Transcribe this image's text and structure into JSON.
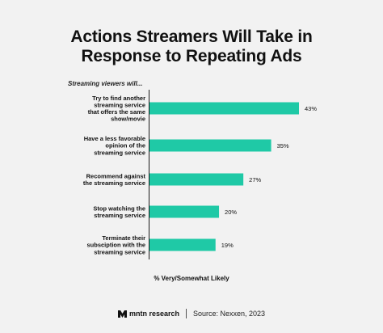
{
  "title_lines": [
    "Actions Streamers Will Take in",
    "Response to Repeating Ads"
  ],
  "subtitle": "Streaming viewers will...",
  "xlabel": "% Very/Somewhat Likely",
  "footer": {
    "brand": "mntn research",
    "brand_icon": "mntn-logo-icon",
    "source": "Source: Nexxen, 2023"
  },
  "colors": {
    "bar": "#1fc9a6",
    "background": "#f2f2f2",
    "text": "#111111"
  },
  "chart_data": {
    "type": "bar",
    "orientation": "horizontal",
    "title": "Actions Streamers Will Take in Response to Repeating Ads",
    "subtitle": "Streaming viewers will...",
    "xlabel": "% Very/Somewhat Likely",
    "categories": [
      [
        "Try to find another",
        "streaming service",
        "that offers the same",
        "show/movie"
      ],
      [
        "Have a less favorable",
        "opinion of the",
        "streaming service"
      ],
      [
        "Recommend against",
        "the streaming service"
      ],
      [
        "Stop watching the",
        "streaming service"
      ],
      [
        "Terminate their",
        "subsciption with the",
        "streaming service"
      ]
    ],
    "values": [
      43,
      35,
      27,
      20,
      19
    ],
    "value_labels": [
      "43%",
      "35%",
      "27%",
      "20%",
      "19%"
    ],
    "xlim": [
      0,
      43
    ],
    "grid": false,
    "legend": "none"
  }
}
